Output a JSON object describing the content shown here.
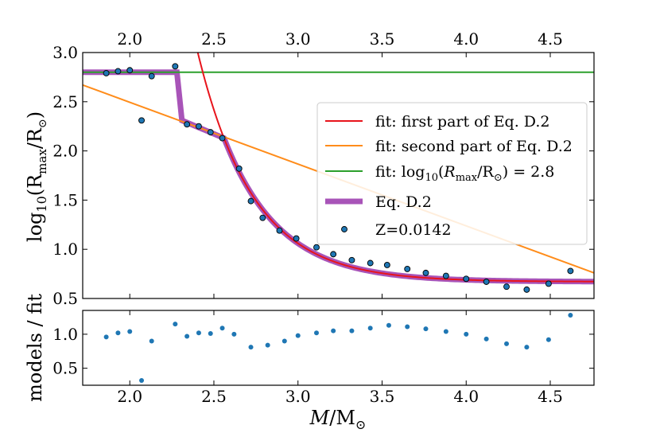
{
  "chart_data": [
    {
      "type": "line",
      "name": "main-panel",
      "xlim": [
        1.72,
        4.76
      ],
      "ylim": [
        0.5,
        3.0
      ],
      "ylabel_main": "log",
      "ylabel_sub": "10",
      "ylabel_rest": "(R",
      "ylabel_max": "max",
      "ylabel_end": "/R",
      "ylabel_sun": "⊙",
      "ylabel_close": ")",
      "yticks": [
        "0.5",
        "1.0",
        "1.5",
        "2.0",
        "2.5",
        "3.0"
      ],
      "ytick_values": [
        0.5,
        1.0,
        1.5,
        2.0,
        2.5,
        3.0
      ],
      "top_xticks": [
        "2.0",
        "2.5",
        "3.0",
        "3.5",
        "4.0",
        "4.5"
      ],
      "top_xtick_values": [
        2.0,
        2.5,
        3.0,
        3.5,
        4.0,
        4.5
      ],
      "legend_position": "right",
      "legend": [
        {
          "label": "fit: first part of Eq. D.2",
          "color": "#e8141c",
          "kind": "line"
        },
        {
          "label": "fit: second part of Eq. D.2",
          "color": "#ff8c1a",
          "kind": "line"
        },
        {
          "label": "fit: log₁₀(R_max/R_⊙) = 2.8",
          "color": "#2ca02c",
          "kind": "line"
        },
        {
          "label": "Eq. D.2",
          "color": "#a854b8",
          "kind": "thick"
        },
        {
          "label": "Z=0.0142",
          "color": "#1f77b4",
          "kind": "marker"
        }
      ],
      "legend_text": {
        "l1": "fit: first part of Eq. D.2",
        "l2": "fit: second part of Eq. D.2",
        "l3a": "fit: log",
        "l3b": "10",
        "l3c": "(",
        "l3d": "R",
        "l3e": "max",
        "l3f": "/R",
        "l3g": "⊙",
        "l3h": ") = 2.8",
        "l4": "Eq. D.2",
        "l5": "Z=0.0142"
      },
      "series": [
        {
          "name": "Z=0.0142",
          "kind": "scatter",
          "color": "#1f77b4",
          "x": [
            1.86,
            1.93,
            2.0,
            2.07,
            2.13,
            2.27,
            2.34,
            2.41,
            2.48,
            2.55,
            2.65,
            2.72,
            2.79,
            2.89,
            2.99,
            3.11,
            3.21,
            3.32,
            3.43,
            3.53,
            3.65,
            3.76,
            3.88,
            4.0,
            4.12,
            4.24,
            4.36,
            4.49,
            4.62
          ],
          "y": [
            2.79,
            2.81,
            2.82,
            2.31,
            2.76,
            2.86,
            2.27,
            2.25,
            2.19,
            2.13,
            1.82,
            1.49,
            1.32,
            1.19,
            1.11,
            1.02,
            0.95,
            0.89,
            0.86,
            0.84,
            0.8,
            0.76,
            0.73,
            0.7,
            0.67,
            0.62,
            0.59,
            0.65,
            0.78
          ]
        },
        {
          "name": "fit: first part of Eq. D.2",
          "kind": "curve",
          "color": "#e8141c",
          "model": "a + b*exp(-c*(x - x0))",
          "a": 0.67,
          "b": 1.46,
          "c": 3.0,
          "x0": 2.56,
          "xrange": [
            2.4,
            4.76
          ]
        },
        {
          "name": "fit: second part of Eq. D.2",
          "kind": "curve",
          "color": "#ff8c1a",
          "model": "linear",
          "x": [
            1.72,
            4.76
          ],
          "y": [
            2.67,
            0.76
          ]
        },
        {
          "name": "fit: log10(Rmax/Rsun) = 2.8",
          "kind": "hline",
          "color": "#2ca02c",
          "y": 2.8
        },
        {
          "name": "Eq. D.2",
          "kind": "piecewise",
          "color": "#a854b8",
          "segments": [
            {
              "x": [
                1.72,
                2.28
              ],
              "y": [
                2.8,
                2.8
              ]
            },
            {
              "x": [
                2.28,
                2.31
              ],
              "y": [
                2.8,
                2.31
              ]
            },
            {
              "x": [
                2.31,
                2.56
              ],
              "y": [
                2.31,
                2.13
              ]
            }
          ],
          "tail_model": {
            "a": 0.67,
            "b": 1.46,
            "c": 3.0,
            "x0": 2.56,
            "xrange": [
              2.56,
              4.76
            ]
          }
        }
      ]
    },
    {
      "type": "scatter",
      "name": "ratio-panel",
      "xlim": [
        1.72,
        4.76
      ],
      "ylim": [
        0.25,
        1.35
      ],
      "xlabel_main": "M",
      "xlabel_rest": "/M",
      "xlabel_sun": "⊙",
      "ylabel": "models / fit",
      "yticks": [
        "0.5",
        "1.0"
      ],
      "ytick_values": [
        0.5,
        1.0
      ],
      "xticks": [
        "2.0",
        "2.5",
        "3.0",
        "3.5",
        "4.0",
        "4.5"
      ],
      "xtick_values": [
        2.0,
        2.5,
        3.0,
        3.5,
        4.0,
        4.5
      ],
      "series": [
        {
          "name": "models / fit",
          "color": "#1f77b4",
          "x": [
            1.86,
            1.93,
            2.0,
            2.07,
            2.13,
            2.27,
            2.34,
            2.41,
            2.48,
            2.55,
            2.62,
            2.72,
            2.82,
            2.92,
            3.0,
            3.11,
            3.21,
            3.32,
            3.43,
            3.54,
            3.65,
            3.76,
            3.88,
            4.0,
            4.12,
            4.24,
            4.36,
            4.49,
            4.62
          ],
          "y": [
            0.96,
            1.02,
            1.04,
            0.32,
            0.9,
            1.15,
            0.97,
            1.02,
            1.01,
            1.09,
            1.0,
            0.81,
            0.84,
            0.9,
            0.98,
            1.02,
            1.05,
            1.05,
            1.09,
            1.13,
            1.11,
            1.08,
            1.04,
            1.0,
            0.93,
            0.86,
            0.81,
            0.92,
            1.28
          ]
        }
      ]
    }
  ]
}
